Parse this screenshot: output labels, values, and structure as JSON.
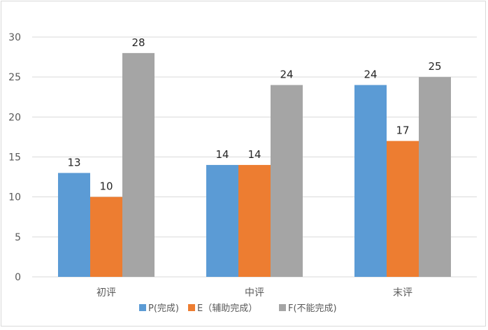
{
  "chart_data": {
    "type": "bar",
    "categories": [
      "初评",
      "中评",
      "末评"
    ],
    "series": [
      {
        "name": "P(完成)",
        "values": [
          13,
          14,
          24
        ],
        "color": "#5b9bd5"
      },
      {
        "name": "E（辅助完成）",
        "values": [
          10,
          14,
          17
        ],
        "color": "#ed7d31"
      },
      {
        "name": "F(不能完成)",
        "values": [
          28,
          24,
          25
        ],
        "color": "#a5a5a5"
      }
    ],
    "y_ticks": [
      "0",
      "5",
      "10",
      "15",
      "20",
      "25",
      "30"
    ],
    "ylim": [
      0,
      30
    ],
    "grid": true,
    "legend": "bottom",
    "data_labels": true
  }
}
